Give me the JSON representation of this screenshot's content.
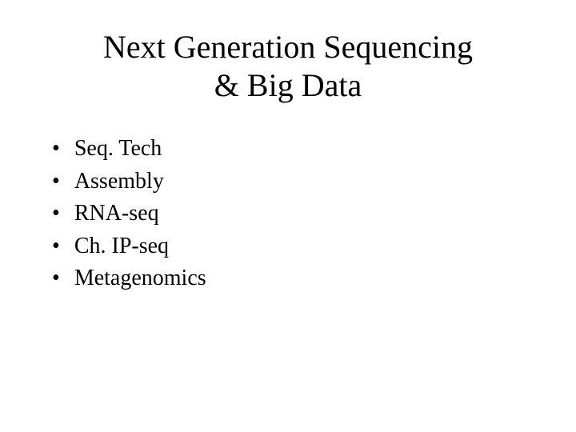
{
  "slide": {
    "title_line1": "Next Generation Sequencing",
    "title_line2": "& Big Data",
    "bullets": [
      {
        "text": "Seq. Tech"
      },
      {
        "text": "Assembly"
      },
      {
        "text": "RNA-seq"
      },
      {
        "text": "Ch. IP-seq"
      },
      {
        "text": "Metagenomics"
      }
    ],
    "bullet_marker": "•",
    "colors": {
      "background": "#ffffff",
      "text": "#000000"
    },
    "typography": {
      "title_fontsize": 40,
      "bullet_fontsize": 28,
      "font_family": "Times New Roman"
    }
  }
}
